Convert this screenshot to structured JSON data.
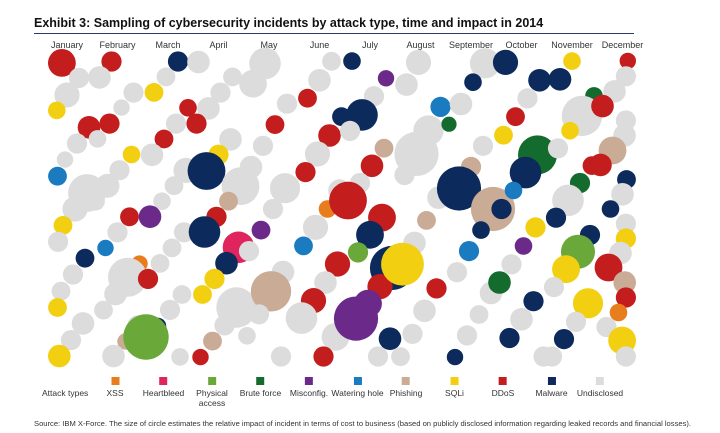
{
  "title": "Exhibit 3: Sampling of cybersecurity incidents by attack type, time and impact in 2014",
  "source": "Source: IBM X-Force. The size of circle estimates the relative impact of incident in terms of cost to business (based on publicly disclosed information regarding leaked records and financial losses).",
  "chart_data": {
    "type": "scatter",
    "title": "Exhibit 3: Sampling of cybersecurity incidents by attack type, time and impact in 2014",
    "months": [
      "January",
      "February",
      "March",
      "April",
      "May",
      "June",
      "July",
      "August",
      "September",
      "October",
      "November",
      "December"
    ],
    "legend_title": "Attack types",
    "legend_position": "bottom",
    "attack_types": [
      {
        "name": "XSS",
        "label": "XSS",
        "color": "#e87d1e"
      },
      {
        "name": "Heartbleed",
        "label": "Heartbleed",
        "color": "#e0245e"
      },
      {
        "name": "Physical access",
        "label": "Physical access",
        "color": "#6aa83a"
      },
      {
        "name": "Brute force",
        "label": "Brute force",
        "color": "#136b2e"
      },
      {
        "name": "Misconfig.",
        "label": "Misconfig.",
        "color": "#6b2a8a"
      },
      {
        "name": "Watering hole",
        "label": "Watering hole",
        "color": "#1a7bc0"
      },
      {
        "name": "Phishing",
        "label": "Phishing",
        "color": "#c9ab96"
      },
      {
        "name": "SQLi",
        "label": "SQLi",
        "color": "#f2cf10"
      },
      {
        "name": "DDoS",
        "label": "DDoS",
        "color": "#c41d1d"
      },
      {
        "name": "Malware",
        "label": "Malware",
        "color": "#0c2a5c"
      },
      {
        "name": "Undisclosed",
        "label": "Undisclosed",
        "color": "#dcdcdc"
      }
    ],
    "incidents": {
      "January": [
        {
          "type": "DDoS",
          "impact": 2.2
        },
        {
          "type": "Undisclosed",
          "impact": 1.6
        },
        {
          "type": "Undisclosed",
          "impact": 2.0
        },
        {
          "type": "SQLi",
          "impact": 1.4
        },
        {
          "type": "DDoS",
          "impact": 1.8
        },
        {
          "type": "Undisclosed",
          "impact": 1.6
        },
        {
          "type": "Undisclosed",
          "impact": 1.3
        },
        {
          "type": "Watering hole",
          "impact": 1.5
        },
        {
          "type": "Undisclosed",
          "impact": 3.0
        },
        {
          "type": "Undisclosed",
          "impact": 2.0
        },
        {
          "type": "SQLi",
          "impact": 1.5
        },
        {
          "type": "Undisclosed",
          "impact": 1.6
        },
        {
          "type": "Malware",
          "impact": 1.5
        },
        {
          "type": "Undisclosed",
          "impact": 1.6
        },
        {
          "type": "Undisclosed",
          "impact": 1.5
        },
        {
          "type": "SQLi",
          "impact": 1.5
        },
        {
          "type": "Undisclosed",
          "impact": 1.8
        },
        {
          "type": "Undisclosed",
          "impact": 1.6
        },
        {
          "type": "SQLi",
          "impact": 1.8
        }
      ],
      "February": [
        {
          "type": "DDoS",
          "impact": 1.6
        },
        {
          "type": "Undisclosed",
          "impact": 1.8
        },
        {
          "type": "Undisclosed",
          "impact": 1.6
        },
        {
          "type": "Undisclosed",
          "impact": 1.3
        },
        {
          "type": "DDoS",
          "impact": 1.6
        },
        {
          "type": "Undisclosed",
          "impact": 1.4
        },
        {
          "type": "SQLi",
          "impact": 1.4
        },
        {
          "type": "Undisclosed",
          "impact": 1.6
        },
        {
          "type": "Undisclosed",
          "impact": 1.9
        },
        {
          "type": "Undisclosed",
          "impact": 1.5
        },
        {
          "type": "DDoS",
          "impact": 1.5
        },
        {
          "type": "Undisclosed",
          "impact": 1.6
        },
        {
          "type": "Watering hole",
          "impact": 1.3
        },
        {
          "type": "XSS",
          "impact": 1.3
        },
        {
          "type": "Undisclosed",
          "impact": 3.1
        },
        {
          "type": "Undisclosed",
          "impact": 1.8
        },
        {
          "type": "Undisclosed",
          "impact": 1.5
        },
        {
          "type": "Undisclosed",
          "impact": 1.6
        },
        {
          "type": "Phishing",
          "impact": 1.3
        },
        {
          "type": "Undisclosed",
          "impact": 1.8
        }
      ],
      "March": [
        {
          "type": "Malware",
          "impact": 1.6
        },
        {
          "type": "Undisclosed",
          "impact": 1.5
        },
        {
          "type": "SQLi",
          "impact": 1.5
        },
        {
          "type": "DDoS",
          "impact": 1.4
        },
        {
          "type": "Undisclosed",
          "impact": 1.6
        },
        {
          "type": "DDoS",
          "impact": 1.5
        },
        {
          "type": "Undisclosed",
          "impact": 1.8
        },
        {
          "type": "Undisclosed",
          "impact": 2.0
        },
        {
          "type": "Undisclosed",
          "impact": 1.5
        },
        {
          "type": "Undisclosed",
          "impact": 1.4
        },
        {
          "type": "Misconfig.",
          "impact": 1.8
        },
        {
          "type": "Undisclosed",
          "impact": 1.6
        },
        {
          "type": "Undisclosed",
          "impact": 1.5
        },
        {
          "type": "Undisclosed",
          "impact": 1.5
        },
        {
          "type": "DDoS",
          "impact": 1.6
        },
        {
          "type": "Undisclosed",
          "impact": 1.5
        },
        {
          "type": "Undisclosed",
          "impact": 1.6
        },
        {
          "type": "Malware",
          "impact": 1.3
        },
        {
          "type": "Physical access",
          "impact": 3.6
        },
        {
          "type": "Undisclosed",
          "impact": 1.4
        }
      ],
      "April": [
        {
          "type": "Undisclosed",
          "impact": 1.8
        },
        {
          "type": "Undisclosed",
          "impact": 1.5
        },
        {
          "type": "Undisclosed",
          "impact": 1.6
        },
        {
          "type": "Undisclosed",
          "impact": 1.8
        },
        {
          "type": "DDoS",
          "impact": 1.6
        },
        {
          "type": "Undisclosed",
          "impact": 1.8
        },
        {
          "type": "SQLi",
          "impact": 1.6
        },
        {
          "type": "Malware",
          "impact": 3.0
        },
        {
          "type": "Undisclosed",
          "impact": 3.0
        },
        {
          "type": "Phishing",
          "impact": 1.5
        },
        {
          "type": "DDoS",
          "impact": 1.6
        },
        {
          "type": "Malware",
          "impact": 2.5
        },
        {
          "type": "Heartbleed",
          "impact": 2.5
        },
        {
          "type": "Malware",
          "impact": 1.8
        },
        {
          "type": "SQLi",
          "impact": 1.6
        },
        {
          "type": "SQLi",
          "impact": 1.5
        },
        {
          "type": "Undisclosed",
          "impact": 3.2
        },
        {
          "type": "Undisclosed",
          "impact": 1.6
        },
        {
          "type": "Phishing",
          "impact": 1.5
        },
        {
          "type": "DDoS",
          "impact": 1.3
        }
      ],
      "May": [
        {
          "type": "Undisclosed",
          "impact": 2.5
        },
        {
          "type": "Undisclosed",
          "impact": 2.2
        },
        {
          "type": "Undisclosed",
          "impact": 1.6
        },
        {
          "type": "DDoS",
          "impact": 1.5
        },
        {
          "type": "Undisclosed",
          "impact": 1.6
        },
        {
          "type": "Undisclosed",
          "impact": 1.8
        },
        {
          "type": "Undisclosed",
          "impact": 2.4
        },
        {
          "type": "Undisclosed",
          "impact": 1.6
        },
        {
          "type": "Misconfig.",
          "impact": 1.5
        },
        {
          "type": "Undisclosed",
          "impact": 1.6
        },
        {
          "type": "Undisclosed",
          "impact": 1.8
        },
        {
          "type": "Phishing",
          "impact": 3.2
        },
        {
          "type": "Undisclosed",
          "impact": 1.6
        },
        {
          "type": "Undisclosed",
          "impact": 1.4
        },
        {
          "type": "Undisclosed",
          "impact": 1.6
        }
      ],
      "June": [
        {
          "type": "Undisclosed",
          "impact": 1.5
        },
        {
          "type": "Undisclosed",
          "impact": 1.8
        },
        {
          "type": "DDoS",
          "impact": 1.5
        },
        {
          "type": "Malware",
          "impact": 1.5
        },
        {
          "type": "DDoS",
          "impact": 1.8
        },
        {
          "type": "Undisclosed",
          "impact": 2.0
        },
        {
          "type": "DDoS",
          "impact": 1.6
        },
        {
          "type": "Undisclosed",
          "impact": 1.8
        },
        {
          "type": "XSS",
          "impact": 1.4
        },
        {
          "type": "Undisclosed",
          "impact": 2.0
        },
        {
          "type": "Watering hole",
          "impact": 1.5
        },
        {
          "type": "DDoS",
          "impact": 2.0
        },
        {
          "type": "Undisclosed",
          "impact": 1.8
        },
        {
          "type": "DDoS",
          "impact": 2.0
        },
        {
          "type": "Undisclosed",
          "impact": 2.5
        },
        {
          "type": "Undisclosed",
          "impact": 2.2
        },
        {
          "type": "DDoS",
          "impact": 1.6
        }
      ],
      "July": [
        {
          "type": "Malware",
          "impact": 1.4
        },
        {
          "type": "Misconfig.",
          "impact": 1.3
        },
        {
          "type": "Undisclosed",
          "impact": 1.6
        },
        {
          "type": "Malware",
          "impact": 2.5
        },
        {
          "type": "Undisclosed",
          "impact": 1.6
        },
        {
          "type": "Phishing",
          "impact": 1.5
        },
        {
          "type": "DDoS",
          "impact": 1.8
        },
        {
          "type": "Undisclosed",
          "impact": 1.6
        },
        {
          "type": "DDoS",
          "impact": 3.0
        },
        {
          "type": "DDoS",
          "impact": 2.2
        },
        {
          "type": "Malware",
          "impact": 2.2
        },
        {
          "type": "Physical access",
          "impact": 1.6
        },
        {
          "type": "Malware",
          "impact": 3.5
        },
        {
          "type": "DDoS",
          "impact": 2.0
        },
        {
          "type": "Misconfig.",
          "impact": 2.2
        },
        {
          "type": "Misconfig.",
          "impact": 3.5
        },
        {
          "type": "Malware",
          "impact": 1.8
        },
        {
          "type": "Undisclosed",
          "impact": 1.6
        }
      ],
      "August": [
        {
          "type": "Undisclosed",
          "impact": 2.0
        },
        {
          "type": "Undisclosed",
          "impact": 1.8
        },
        {
          "type": "Watering hole",
          "impact": 1.6
        },
        {
          "type": "Undisclosed",
          "impact": 2.4
        },
        {
          "type": "Undisclosed",
          "impact": 3.5
        },
        {
          "type": "Undisclosed",
          "impact": 1.6
        },
        {
          "type": "Undisclosed",
          "impact": 1.8
        },
        {
          "type": "Phishing",
          "impact": 1.5
        },
        {
          "type": "Undisclosed",
          "impact": 1.8
        },
        {
          "type": "SQLi",
          "impact": 3.4
        },
        {
          "type": "DDoS",
          "impact": 1.6
        },
        {
          "type": "Undisclosed",
          "impact": 1.8
        },
        {
          "type": "Undisclosed",
          "impact": 1.6
        },
        {
          "type": "Undisclosed",
          "impact": 1.5
        }
      ],
      "September": [
        {
          "type": "Undisclosed",
          "impact": 2.4
        },
        {
          "type": "Malware",
          "impact": 1.4
        },
        {
          "type": "Undisclosed",
          "impact": 1.8
        },
        {
          "type": "Brute force",
          "impact": 1.2
        },
        {
          "type": "Undisclosed",
          "impact": 1.6
        },
        {
          "type": "Phishing",
          "impact": 1.6
        },
        {
          "type": "Malware",
          "impact": 3.5
        },
        {
          "type": "Phishing",
          "impact": 3.5
        },
        {
          "type": "Malware",
          "impact": 1.4
        },
        {
          "type": "Watering hole",
          "impact": 1.6
        },
        {
          "type": "Undisclosed",
          "impact": 1.6
        },
        {
          "type": "Undisclosed",
          "impact": 1.8
        },
        {
          "type": "Undisclosed",
          "impact": 1.5
        },
        {
          "type": "Undisclosed",
          "impact": 1.6
        },
        {
          "type": "Malware",
          "impact": 1.3
        }
      ],
      "October": [
        {
          "type": "Malware",
          "impact": 2.0
        },
        {
          "type": "Malware",
          "impact": 1.8
        },
        {
          "type": "Undisclosed",
          "impact": 1.6
        },
        {
          "type": "DDoS",
          "impact": 1.5
        },
        {
          "type": "SQLi",
          "impact": 1.5
        },
        {
          "type": "Brute force",
          "impact": 3.1
        },
        {
          "type": "Malware",
          "impact": 2.5
        },
        {
          "type": "Watering hole",
          "impact": 1.4
        },
        {
          "type": "Malware",
          "impact": 1.6
        },
        {
          "type": "SQLi",
          "impact": 1.6
        },
        {
          "type": "Misconfig.",
          "impact": 1.4
        },
        {
          "type": "Undisclosed",
          "impact": 1.6
        },
        {
          "type": "Brute force",
          "impact": 1.8
        },
        {
          "type": "Malware",
          "impact": 1.6
        },
        {
          "type": "Undisclosed",
          "impact": 1.8
        },
        {
          "type": "Malware",
          "impact": 1.6
        },
        {
          "type": "Undisclosed",
          "impact": 1.6
        }
      ],
      "November": [
        {
          "type": "SQLi",
          "impact": 1.4
        },
        {
          "type": "Malware",
          "impact": 1.8
        },
        {
          "type": "Brute force",
          "impact": 1.4
        },
        {
          "type": "Undisclosed",
          "impact": 3.2
        },
        {
          "type": "SQLi",
          "impact": 1.4
        },
        {
          "type": "Undisclosed",
          "impact": 1.6
        },
        {
          "type": "DDoS",
          "impact": 1.5
        },
        {
          "type": "Brute force",
          "impact": 1.6
        },
        {
          "type": "Undisclosed",
          "impact": 2.5
        },
        {
          "type": "Malware",
          "impact": 1.6
        },
        {
          "type": "Malware",
          "impact": 1.6
        },
        {
          "type": "Physical access",
          "impact": 2.7
        },
        {
          "type": "SQLi",
          "impact": 2.2
        },
        {
          "type": "Undisclosed",
          "impact": 1.6
        },
        {
          "type": "SQLi",
          "impact": 2.4
        },
        {
          "type": "Undisclosed",
          "impact": 1.6
        },
        {
          "type": "Malware",
          "impact": 1.6
        },
        {
          "type": "Undisclosed",
          "impact": 1.6
        }
      ],
      "December": [
        {
          "type": "DDoS",
          "impact": 1.3
        },
        {
          "type": "Undisclosed",
          "impact": 1.6
        },
        {
          "type": "Undisclosed",
          "impact": 1.8
        },
        {
          "type": "DDoS",
          "impact": 1.8
        },
        {
          "type": "Undisclosed",
          "impact": 1.6
        },
        {
          "type": "Undisclosed",
          "impact": 1.8
        },
        {
          "type": "Phishing",
          "impact": 2.2
        },
        {
          "type": "DDoS",
          "impact": 1.8
        },
        {
          "type": "Malware",
          "impact": 1.5
        },
        {
          "type": "Undisclosed",
          "impact": 1.8
        },
        {
          "type": "Malware",
          "impact": 1.4
        },
        {
          "type": "Undisclosed",
          "impact": 1.6
        },
        {
          "type": "SQLi",
          "impact": 1.6
        },
        {
          "type": "Undisclosed",
          "impact": 1.8
        },
        {
          "type": "DDoS",
          "impact": 2.2
        },
        {
          "type": "Phishing",
          "impact": 1.8
        },
        {
          "type": "DDoS",
          "impact": 1.6
        },
        {
          "type": "XSS",
          "impact": 1.4
        },
        {
          "type": "Undisclosed",
          "impact": 1.6
        },
        {
          "type": "SQLi",
          "impact": 2.2
        },
        {
          "type": "Undisclosed",
          "impact": 1.6
        }
      ]
    }
  }
}
